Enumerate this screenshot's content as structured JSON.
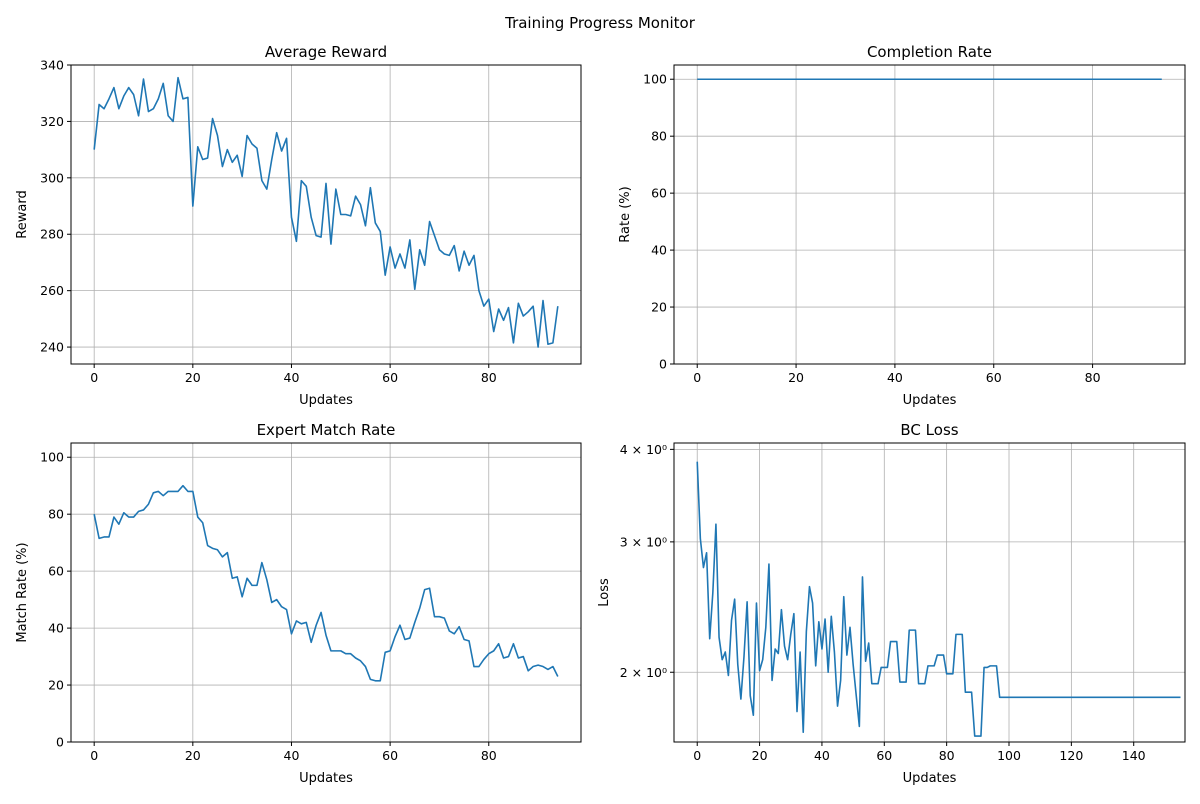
{
  "figure": {
    "suptitle": "Training Progress Monitor"
  },
  "chart_data": [
    {
      "type": "line",
      "title": "Average Reward",
      "xlabel": "Updates",
      "ylabel": "Reward",
      "xlim": [
        -4.7,
        98.7
      ],
      "ylim": [
        234,
        340
      ],
      "xticks": [
        0,
        20,
        40,
        60,
        80
      ],
      "yticks": [
        240,
        260,
        280,
        300,
        320,
        340
      ],
      "grid": true,
      "y_scale": "linear",
      "color": "#1f77b4",
      "series": [
        {
          "x_start": 0,
          "values": [
            310,
            326,
            324.5,
            328,
            332,
            324.5,
            329,
            332,
            329.5,
            322,
            335,
            323.5,
            324.5,
            328,
            333.5,
            322,
            320,
            335.5,
            328,
            328.5,
            290,
            311,
            306.5,
            307,
            321,
            315,
            304,
            310,
            305.5,
            308,
            300.5,
            315,
            312,
            310.5,
            299,
            296,
            306.5,
            316,
            309.5,
            314,
            286,
            277.5,
            299,
            297,
            286,
            279.5,
            279,
            298,
            276.5,
            296,
            287,
            287,
            286.5,
            293.5,
            290.5,
            283,
            296.5,
            284,
            281,
            265.5,
            275.5,
            268,
            273,
            268,
            278,
            260.5,
            274.5,
            269,
            284.5,
            279.5,
            274.5,
            273,
            272.5,
            276,
            267,
            274,
            269,
            272.5,
            260,
            254.5,
            257,
            245.5,
            253.5,
            249.5,
            254,
            241.5,
            255.5,
            251,
            252.5,
            254.5,
            240,
            256.5,
            241,
            241.5,
            254.5
          ]
        }
      ]
    },
    {
      "type": "line",
      "title": "Completion Rate",
      "xlabel": "Updates",
      "ylabel": "Rate (%)",
      "xlim": [
        -4.7,
        98.7
      ],
      "ylim": [
        0,
        105
      ],
      "xticks": [
        0,
        20,
        40,
        60,
        80
      ],
      "yticks": [
        0,
        20,
        40,
        60,
        80,
        100
      ],
      "grid": true,
      "y_scale": "linear",
      "color": "#1f77b4",
      "series": [
        {
          "x_start": 0,
          "values": [
            100,
            100,
            100,
            100,
            100,
            100,
            100,
            100,
            100,
            100,
            100,
            100,
            100,
            100,
            100,
            100,
            100,
            100,
            100,
            100,
            100,
            100,
            100,
            100,
            100,
            100,
            100,
            100,
            100,
            100,
            100,
            100,
            100,
            100,
            100,
            100,
            100,
            100,
            100,
            100,
            100,
            100,
            100,
            100,
            100,
            100,
            100,
            100,
            100,
            100,
            100,
            100,
            100,
            100,
            100,
            100,
            100,
            100,
            100,
            100,
            100,
            100,
            100,
            100,
            100,
            100,
            100,
            100,
            100,
            100,
            100,
            100,
            100,
            100,
            100,
            100,
            100,
            100,
            100,
            100,
            100,
            100,
            100,
            100,
            100,
            100,
            100,
            100,
            100,
            100,
            100,
            100,
            100,
            100,
            100
          ]
        }
      ]
    },
    {
      "type": "line",
      "title": "Expert Match Rate",
      "xlabel": "Updates",
      "ylabel": "Match Rate (%)",
      "xlim": [
        -4.7,
        98.7
      ],
      "ylim": [
        0,
        105
      ],
      "xticks": [
        0,
        20,
        40,
        60,
        80
      ],
      "yticks": [
        0,
        20,
        40,
        60,
        80,
        100
      ],
      "grid": true,
      "y_scale": "linear",
      "color": "#1f77b4",
      "series": [
        {
          "x_start": 0,
          "values": [
            80,
            71.5,
            72,
            72,
            79,
            76.5,
            80.5,
            79,
            79,
            81,
            81.5,
            83.5,
            87.5,
            88,
            86.5,
            88,
            88,
            88,
            90,
            88,
            88,
            79,
            77,
            69,
            68,
            67.5,
            65,
            66.5,
            57.5,
            58,
            51,
            57.5,
            55,
            55,
            63,
            57,
            49,
            50,
            47.5,
            46.5,
            38,
            42.5,
            41.5,
            42,
            35,
            41,
            45.5,
            37.5,
            32,
            32,
            32,
            31,
            31,
            29.5,
            28.5,
            26.5,
            22,
            21.5,
            21.5,
            31.5,
            32,
            37,
            41,
            36,
            36.5,
            42,
            47,
            53.5,
            54,
            44,
            44,
            43.5,
            39,
            38,
            40.5,
            36,
            35.5,
            26.5,
            26.5,
            29,
            31,
            32,
            34.5,
            29.5,
            30,
            34.5,
            29.5,
            30,
            25,
            26.5,
            27,
            26.5,
            25.5,
            26.5,
            23
          ]
        }
      ]
    },
    {
      "type": "line",
      "title": "BC Loss",
      "xlabel": "Updates",
      "ylabel": "Loss",
      "xlim": [
        -7.45,
        156.45
      ],
      "ylim": [
        1.61,
        4.08
      ],
      "xticks": [
        0,
        20,
        40,
        60,
        80,
        100,
        120,
        140
      ],
      "yticks": [
        2,
        3,
        4
      ],
      "ytick_labels": [
        "2 × 10⁰",
        "3 × 10⁰",
        "4 × 10⁰"
      ],
      "grid": true,
      "y_scale": "log",
      "color": "#1f77b4",
      "series": [
        {
          "x_start": 0,
          "values": [
            3.85,
            3.03,
            2.77,
            2.9,
            2.22,
            2.56,
            3.17,
            2.23,
            2.08,
            2.13,
            1.98,
            2.35,
            2.51,
            2.05,
            1.84,
            2.1,
            2.49,
            1.86,
            1.75,
            2.48,
            2.01,
            2.08,
            2.3,
            2.8,
            1.95,
            2.15,
            2.12,
            2.43,
            2.17,
            2.08,
            2.25,
            2.4,
            1.77,
            2.13,
            1.66,
            2.27,
            2.61,
            2.48,
            2.04,
            2.34,
            2.15,
            2.36,
            2.0,
            2.38,
            2.13,
            1.8,
            1.95,
            2.53,
            2.11,
            2.3,
            2.05,
            1.86,
            1.69,
            2.69,
            2.07,
            2.19,
            1.93,
            1.93,
            1.93,
            2.03,
            2.03,
            2.03,
            2.2,
            2.2,
            2.2,
            1.94,
            1.94,
            1.94,
            2.28,
            2.28,
            2.28,
            1.93,
            1.93,
            1.93,
            2.04,
            2.04,
            2.04,
            2.11,
            2.11,
            2.11,
            1.99,
            1.99,
            1.99,
            2.25,
            2.25,
            2.25,
            1.88,
            1.88,
            1.88,
            1.64,
            1.64,
            1.64,
            2.03,
            2.03,
            2.04,
            2.04,
            2.04,
            1.85,
            1.85,
            1.85,
            1.85,
            1.85,
            1.85,
            1.85,
            1.85,
            1.85,
            1.85,
            1.85,
            1.85,
            1.85,
            1.85,
            1.85,
            1.85,
            1.85,
            1.85,
            1.85,
            1.85,
            1.85,
            1.85,
            1.85,
            1.85,
            1.85,
            1.85,
            1.85,
            1.85,
            1.85,
            1.85,
            1.85,
            1.85,
            1.85,
            1.85,
            1.85,
            1.85,
            1.85,
            1.85,
            1.85,
            1.85,
            1.85,
            1.85,
            1.85,
            1.85,
            1.85,
            1.85,
            1.85,
            1.85,
            1.85,
            1.85,
            1.85,
            1.85,
            1.85,
            1.85,
            1.85,
            1.85,
            1.85,
            1.85,
            1.85
          ]
        }
      ]
    }
  ]
}
